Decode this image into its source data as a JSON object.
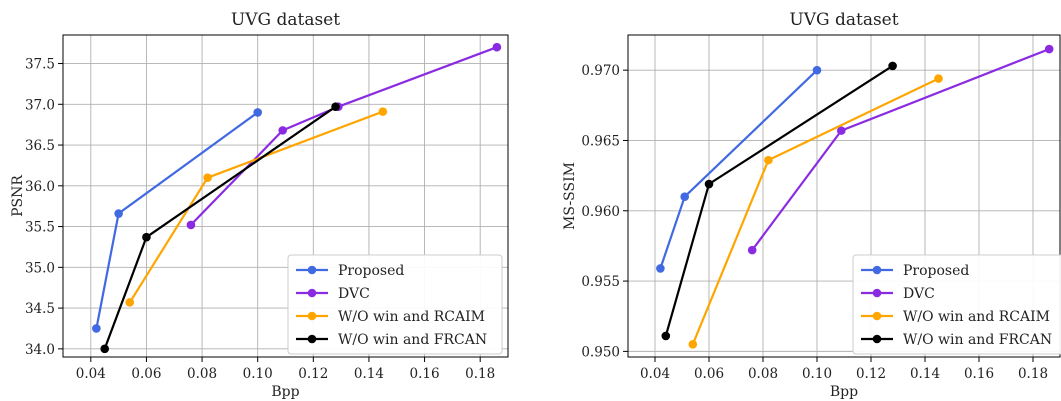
{
  "colors": {
    "proposed": "#4169e1",
    "dvc": "#8a2be2",
    "rcaim": "#ffa500",
    "frcan": "#000000",
    "grid": "#b0b0b0"
  },
  "chart_data": [
    {
      "type": "line",
      "title": "UVG dataset",
      "xlabel": "Bpp",
      "ylabel": "PSNR",
      "xlim": [
        0.03,
        0.19
      ],
      "ylim": [
        33.9,
        37.85
      ],
      "grid": true,
      "legend_position": "lower-right",
      "xticks": [
        0.04,
        0.06,
        0.08,
        0.1,
        0.12,
        0.14,
        0.16,
        0.18
      ],
      "xtick_labels": [
        "0.04",
        "0.06",
        "0.08",
        "0.10",
        "0.12",
        "0.14",
        "0.16",
        "0.18"
      ],
      "yticks": [
        34.0,
        34.5,
        35.0,
        35.5,
        36.0,
        36.5,
        37.0,
        37.5
      ],
      "ytick_labels": [
        "34.0",
        "34.5",
        "35.0",
        "35.5",
        "36.0",
        "36.5",
        "37.0",
        "37.5"
      ],
      "series": [
        {
          "name": "Proposed",
          "color_key": "proposed",
          "x": [
            0.042,
            0.05,
            0.1
          ],
          "y": [
            34.25,
            35.66,
            36.9
          ]
        },
        {
          "name": "DVC",
          "color_key": "dvc",
          "x": [
            0.076,
            0.109,
            0.129,
            0.186
          ],
          "y": [
            35.52,
            36.68,
            36.97,
            37.7
          ]
        },
        {
          "name": "W/O win and RCAIM",
          "color_key": "rcaim",
          "x": [
            0.054,
            0.082,
            0.145
          ],
          "y": [
            34.57,
            36.1,
            36.91
          ]
        },
        {
          "name": "W/O win and FRCAN",
          "color_key": "frcan",
          "x": [
            0.045,
            0.06,
            0.128
          ],
          "y": [
            34.0,
            35.37,
            36.97
          ]
        }
      ]
    },
    {
      "type": "line",
      "title": "UVG dataset",
      "xlabel": "Bpp",
      "ylabel": "MS-SSIM",
      "xlim": [
        0.03,
        0.19
      ],
      "ylim": [
        0.9496,
        0.9725
      ],
      "grid": true,
      "legend_position": "lower-right",
      "xticks": [
        0.04,
        0.06,
        0.08,
        0.1,
        0.12,
        0.14,
        0.16,
        0.18
      ],
      "xtick_labels": [
        "0.04",
        "0.06",
        "0.08",
        "0.10",
        "0.12",
        "0.14",
        "0.16",
        "0.18"
      ],
      "yticks": [
        0.95,
        0.955,
        0.96,
        0.965,
        0.97
      ],
      "ytick_labels": [
        "0.950",
        "0.955",
        "0.960",
        "0.965",
        "0.970"
      ],
      "series": [
        {
          "name": "Proposed",
          "color_key": "proposed",
          "x": [
            0.042,
            0.051,
            0.1
          ],
          "y": [
            0.9559,
            0.961,
            0.97
          ]
        },
        {
          "name": "DVC",
          "color_key": "dvc",
          "x": [
            0.076,
            0.109,
            0.186
          ],
          "y": [
            0.9572,
            0.9657,
            0.9715
          ]
        },
        {
          "name": "W/O win and RCAIM",
          "color_key": "rcaim",
          "x": [
            0.054,
            0.082,
            0.145
          ],
          "y": [
            0.9505,
            0.9636,
            0.9694
          ]
        },
        {
          "name": "W/O win and FRCAN",
          "color_key": "frcan",
          "x": [
            0.044,
            0.06,
            0.128
          ],
          "y": [
            0.9511,
            0.9619,
            0.9703
          ]
        }
      ]
    }
  ]
}
